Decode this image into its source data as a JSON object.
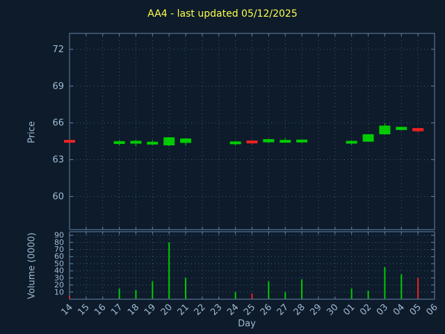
{
  "chart_data": {
    "type": "candlestick",
    "title": "AA4 - last updated 05/12/2025",
    "xlabel": "Day",
    "price_ylabel": "Price",
    "volume_ylabel": "Volume (0000)",
    "price_ylim": [
      57.3,
      73.3
    ],
    "volume_ylim": [
      0,
      95
    ],
    "price_yticks": [
      60,
      63,
      66,
      69,
      72
    ],
    "volume_yticks": [
      10,
      20,
      30,
      40,
      50,
      60,
      70,
      80,
      90
    ],
    "x_labels": [
      "14",
      "15",
      "16",
      "17",
      "18",
      "19",
      "20",
      "21",
      "22",
      "23",
      "24",
      "25",
      "26",
      "27",
      "28",
      "29",
      "30",
      "01",
      "02",
      "03",
      "04",
      "05",
      "06"
    ],
    "legend_position": "none",
    "grid": true,
    "colors": {
      "background": "#0d1b2b",
      "grid": "#3d5d7d",
      "border": "#6287a8",
      "text": "#9fbcd4",
      "title": "#ffff4d",
      "up": "#00cc00",
      "down": "#ee2222"
    },
    "candles": [
      {
        "day": "14",
        "open": 64.55,
        "high": 64.6,
        "low": 64.4,
        "close": 64.45,
        "direction": "down",
        "volume": 5
      },
      {
        "day": "17",
        "open": 64.35,
        "high": 64.6,
        "low": 64.15,
        "close": 64.45,
        "direction": "up",
        "volume": 15
      },
      {
        "day": "18",
        "open": 64.35,
        "high": 64.65,
        "low": 64.1,
        "close": 64.5,
        "direction": "up",
        "volume": 13
      },
      {
        "day": "19",
        "open": 64.3,
        "high": 64.6,
        "low": 64.2,
        "close": 64.4,
        "direction": "up",
        "volume": 25
      },
      {
        "day": "20",
        "open": 64.2,
        "high": 64.85,
        "low": 64.1,
        "close": 64.8,
        "direction": "up",
        "volume": 80
      },
      {
        "day": "21",
        "open": 64.4,
        "high": 64.75,
        "low": 64.15,
        "close": 64.7,
        "direction": "up",
        "volume": 30
      },
      {
        "day": "24",
        "open": 64.3,
        "high": 64.55,
        "low": 64.15,
        "close": 64.45,
        "direction": "up",
        "volume": 10
      },
      {
        "day": "25",
        "open": 64.5,
        "high": 64.6,
        "low": 64.25,
        "close": 64.4,
        "direction": "down",
        "volume": 8
      },
      {
        "day": "26",
        "open": 64.45,
        "high": 64.7,
        "low": 64.35,
        "close": 64.65,
        "direction": "up",
        "volume": 25
      },
      {
        "day": "27",
        "open": 64.45,
        "high": 64.8,
        "low": 64.4,
        "close": 64.55,
        "direction": "up",
        "volume": 10
      },
      {
        "day": "28",
        "open": 64.45,
        "high": 64.65,
        "low": 64.35,
        "close": 64.6,
        "direction": "up",
        "volume": 28
      },
      {
        "day": "01",
        "open": 64.35,
        "high": 64.6,
        "low": 64.2,
        "close": 64.5,
        "direction": "up",
        "volume": 15
      },
      {
        "day": "02",
        "open": 64.5,
        "high": 65.1,
        "low": 64.45,
        "close": 65.05,
        "direction": "up",
        "volume": 12
      },
      {
        "day": "03",
        "open": 65.1,
        "high": 66.0,
        "low": 65.05,
        "close": 65.75,
        "direction": "up",
        "volume": 45
      },
      {
        "day": "04",
        "open": 65.45,
        "high": 65.7,
        "low": 65.4,
        "close": 65.65,
        "direction": "up",
        "volume": 35
      },
      {
        "day": "05",
        "open": 65.55,
        "high": 65.6,
        "low": 65.2,
        "close": 65.35,
        "direction": "down",
        "volume": 30
      }
    ]
  }
}
